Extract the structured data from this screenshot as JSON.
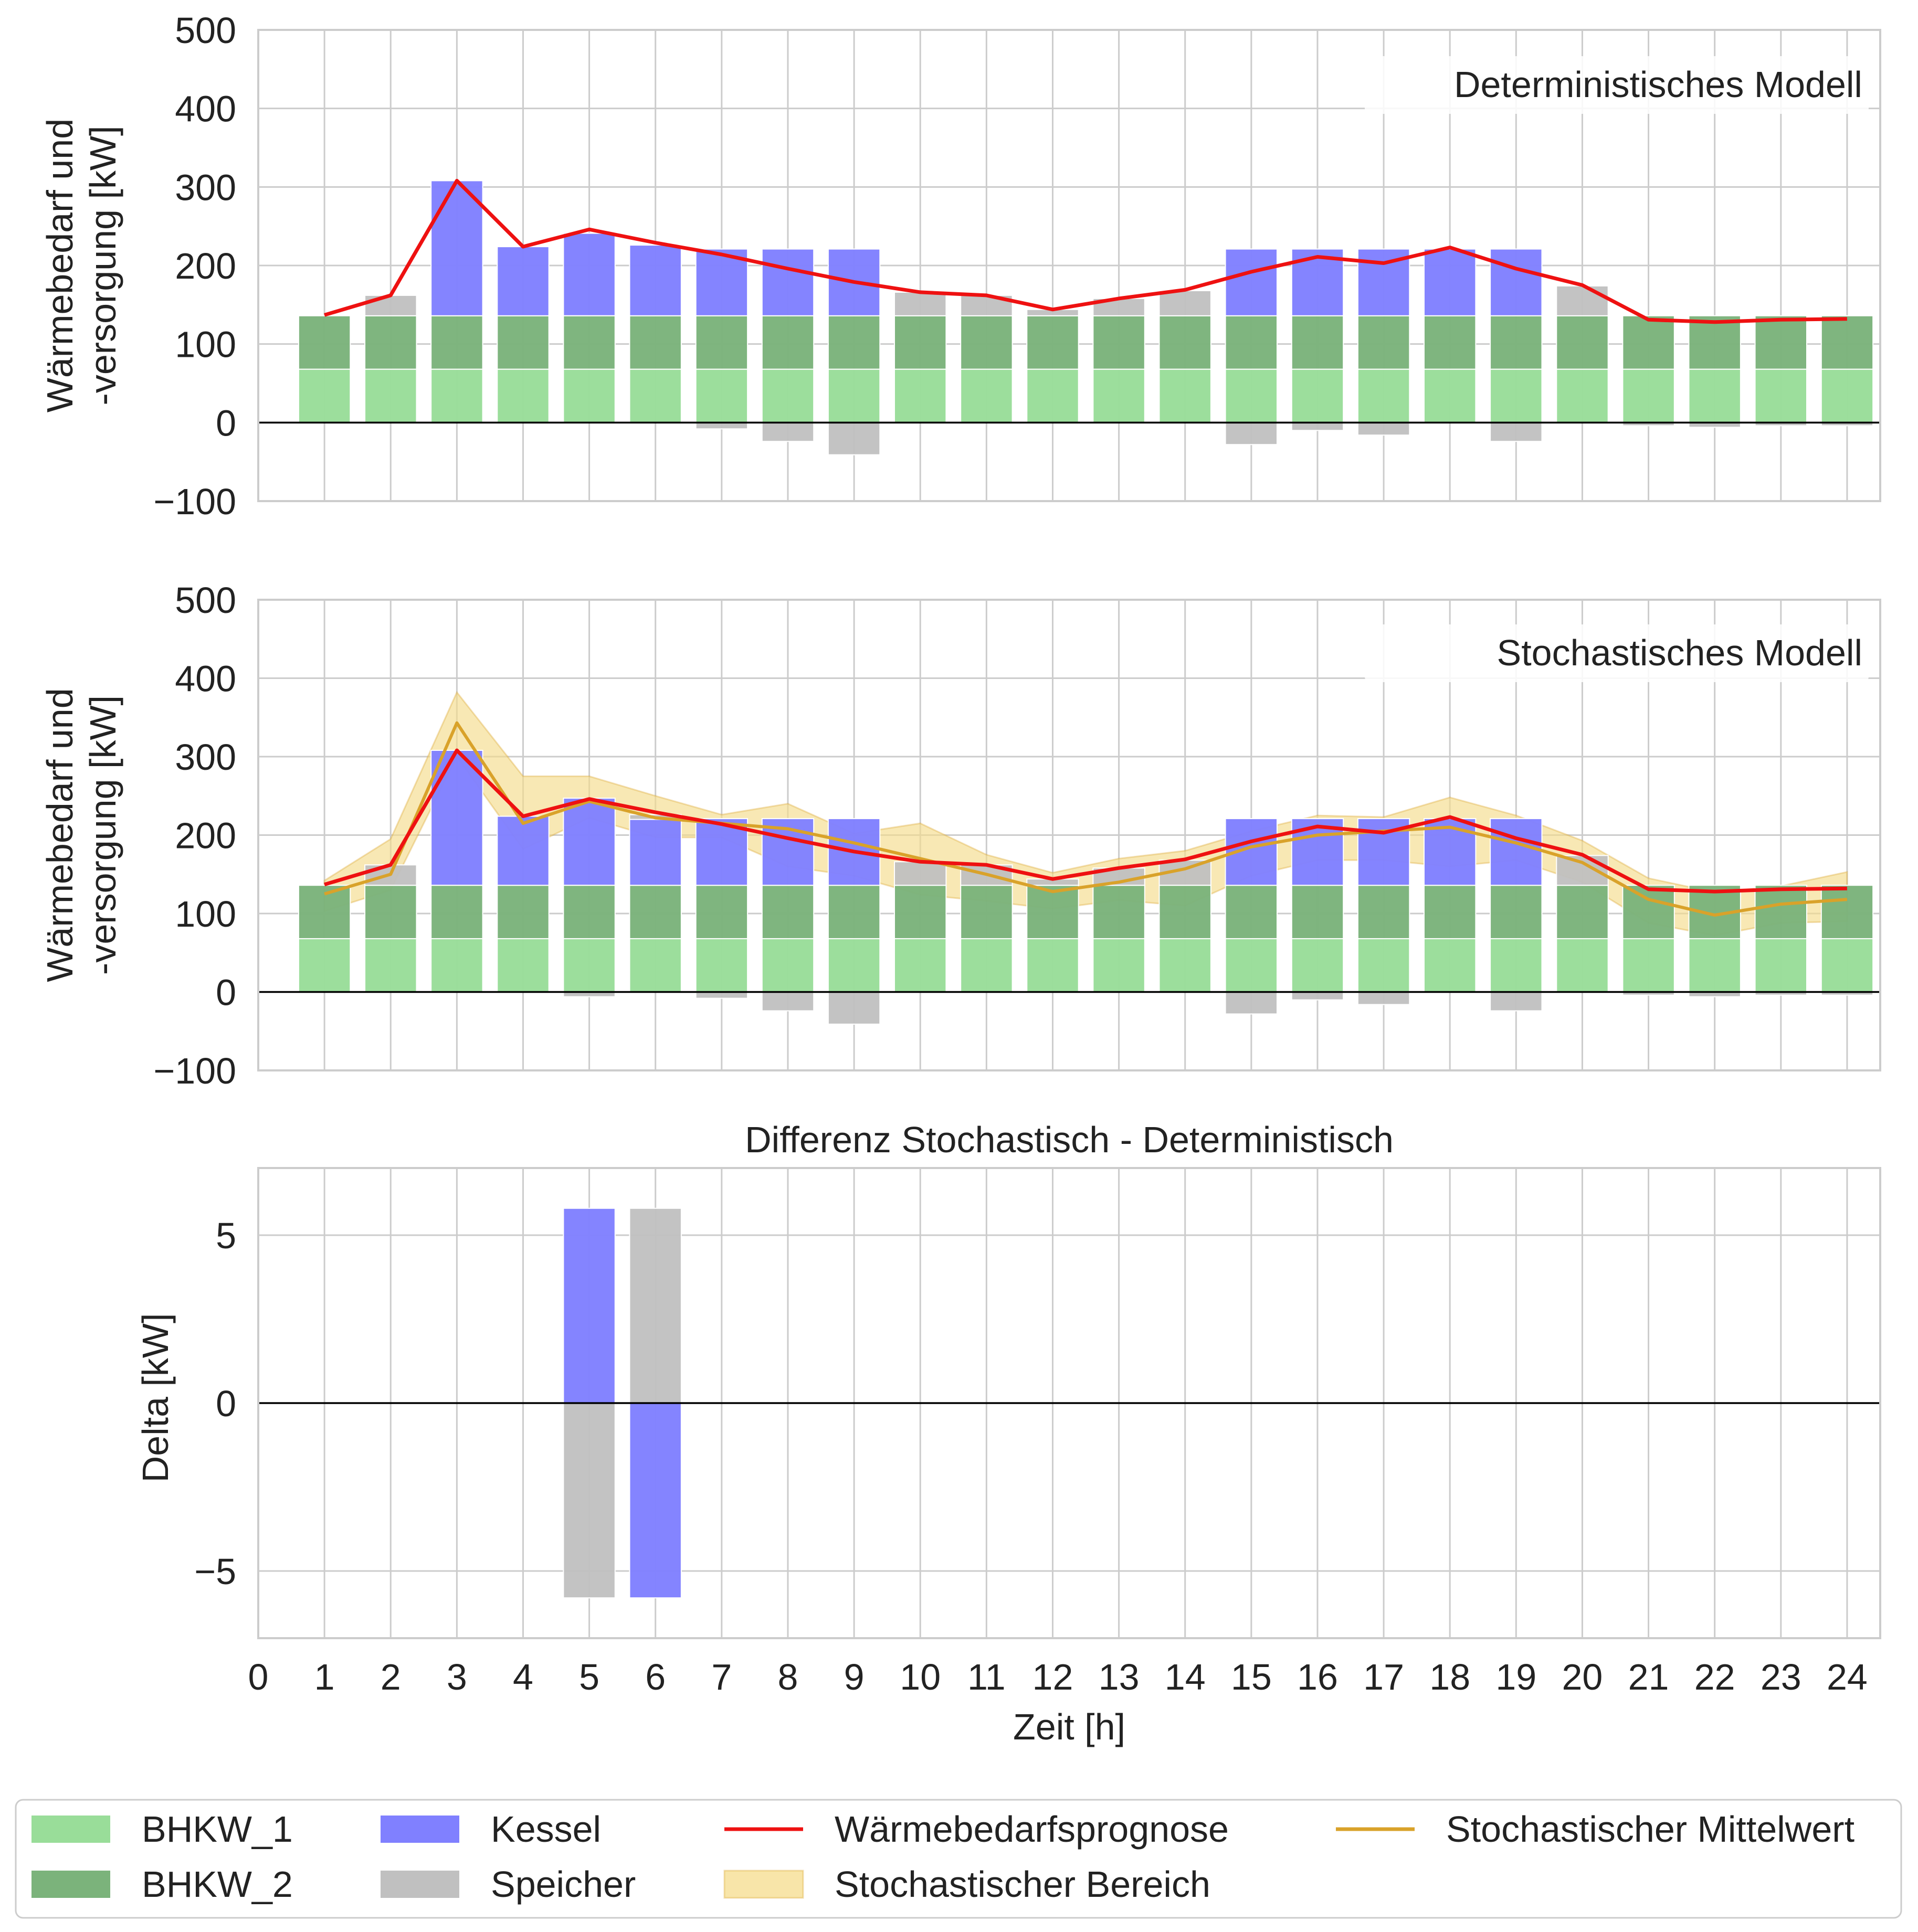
{
  "colors": {
    "bhkw1": "#99dd99",
    "bhkw2": "#7bb37b",
    "kessel": "#8080ff",
    "speicher": "#c0c0c0",
    "prognose": "#ee1111",
    "mittelwert": "#d9a22a",
    "bereich": "#f5dc8c",
    "grid": "#cccccc",
    "zero": "#000000"
  },
  "legend": {
    "items": [
      {
        "label": "BHKW_1",
        "kind": "patch",
        "color_key": "bhkw1"
      },
      {
        "label": "BHKW_2",
        "kind": "patch",
        "color_key": "bhkw2"
      },
      {
        "label": "Kessel",
        "kind": "patch",
        "color_key": "kessel"
      },
      {
        "label": "Speicher",
        "kind": "patch",
        "color_key": "speicher"
      },
      {
        "label": "Wärmebedarfsprognose",
        "kind": "line",
        "color_key": "prognose"
      },
      {
        "label": "Stochastischer Bereich",
        "kind": "patch",
        "color_key": "bereich"
      },
      {
        "label": "Stochastischer Mittelwert",
        "kind": "line",
        "color_key": "mittelwert"
      }
    ]
  },
  "chart_data": [
    {
      "type": "bar",
      "panel": "deterministic",
      "title": "",
      "annotation": "Deterministisches Modell",
      "ylabel": [
        "Wärmebedarf und",
        "-versorgung [kW]"
      ],
      "xlabel": "",
      "ylim": [
        -100,
        500
      ],
      "yticks": [
        -100,
        0,
        100,
        200,
        300,
        400,
        500
      ],
      "ytick_labels": [
        "−100",
        "0",
        "100",
        "200",
        "300",
        "400",
        "500"
      ],
      "xlim": [
        0,
        24.5
      ],
      "xticks": [
        0,
        1,
        2,
        3,
        4,
        5,
        6,
        7,
        8,
        9,
        10,
        11,
        12,
        13,
        14,
        15,
        16,
        17,
        18,
        19,
        20,
        21,
        22,
        23,
        24
      ],
      "show_xtick_labels": false,
      "grid": true,
      "x": [
        1,
        2,
        3,
        4,
        5,
        6,
        7,
        8,
        9,
        10,
        11,
        12,
        13,
        14,
        15,
        16,
        17,
        18,
        19,
        20,
        21,
        22,
        23,
        24
      ],
      "series": [
        {
          "name": "BHKW_1",
          "color_key": "bhkw1",
          "values": [
            68,
            68,
            68,
            68,
            68,
            68,
            68,
            68,
            68,
            68,
            68,
            68,
            68,
            68,
            68,
            68,
            68,
            68,
            68,
            68,
            68,
            68,
            68,
            68
          ]
        },
        {
          "name": "BHKW_2",
          "color_key": "bhkw2",
          "values": [
            68,
            68,
            68,
            68,
            68,
            68,
            68,
            68,
            68,
            68,
            68,
            68,
            68,
            68,
            68,
            68,
            68,
            68,
            68,
            68,
            68,
            68,
            68,
            68
          ]
        },
        {
          "name": "Kessel",
          "color_key": "kessel",
          "values": [
            0,
            0,
            172,
            88,
            105,
            90,
            85,
            85,
            85,
            0,
            0,
            0,
            0,
            0,
            85,
            85,
            85,
            85,
            85,
            0,
            0,
            0,
            0,
            0
          ]
        },
        {
          "name": "Speicher",
          "color_key": "speicher",
          "values": [
            0,
            26,
            0,
            0,
            0,
            0,
            -8,
            -24,
            -41,
            30,
            26,
            8,
            22,
            32,
            -28,
            -10,
            -16,
            0,
            -24,
            38,
            -4,
            -6,
            -4,
            -4
          ]
        },
        {
          "name": "Wärmebedarfsprognose",
          "type": "line",
          "color_key": "prognose",
          "values": [
            137,
            162,
            308,
            224,
            246,
            229,
            214,
            196,
            179,
            166,
            162,
            144,
            158,
            169,
            192,
            211,
            203,
            223,
            196,
            175,
            131,
            128,
            131,
            132
          ]
        }
      ]
    },
    {
      "type": "bar",
      "panel": "stochastic",
      "title": "",
      "annotation": "Stochastisches Modell",
      "ylabel": [
        "Wärmebedarf und",
        "-versorgung [kW]"
      ],
      "xlabel": "",
      "ylim": [
        -100,
        500
      ],
      "yticks": [
        -100,
        0,
        100,
        200,
        300,
        400,
        500
      ],
      "ytick_labels": [
        "−100",
        "0",
        "100",
        "200",
        "300",
        "400",
        "500"
      ],
      "xlim": [
        0,
        24.5
      ],
      "xticks": [
        0,
        1,
        2,
        3,
        4,
        5,
        6,
        7,
        8,
        9,
        10,
        11,
        12,
        13,
        14,
        15,
        16,
        17,
        18,
        19,
        20,
        21,
        22,
        23,
        24
      ],
      "show_xtick_labels": false,
      "grid": true,
      "x": [
        1,
        2,
        3,
        4,
        5,
        6,
        7,
        8,
        9,
        10,
        11,
        12,
        13,
        14,
        15,
        16,
        17,
        18,
        19,
        20,
        21,
        22,
        23,
        24
      ],
      "series": [
        {
          "name": "BHKW_1",
          "color_key": "bhkw1",
          "values": [
            68,
            68,
            68,
            68,
            68,
            68,
            68,
            68,
            68,
            68,
            68,
            68,
            68,
            68,
            68,
            68,
            68,
            68,
            68,
            68,
            68,
            68,
            68,
            68
          ]
        },
        {
          "name": "BHKW_2",
          "color_key": "bhkw2",
          "values": [
            68,
            68,
            68,
            68,
            68,
            68,
            68,
            68,
            68,
            68,
            68,
            68,
            68,
            68,
            68,
            68,
            68,
            68,
            68,
            68,
            68,
            68,
            68,
            68
          ]
        },
        {
          "name": "Kessel",
          "color_key": "kessel",
          "values": [
            0,
            0,
            172,
            88,
            111,
            84,
            85,
            85,
            85,
            0,
            0,
            0,
            0,
            0,
            85,
            85,
            85,
            85,
            85,
            0,
            0,
            0,
            0,
            0
          ]
        },
        {
          "name": "Speicher",
          "color_key": "speicher",
          "values": [
            0,
            26,
            0,
            0,
            -6,
            6,
            -8,
            -24,
            -41,
            30,
            26,
            8,
            22,
            32,
            -28,
            -10,
            -16,
            0,
            -24,
            38,
            -4,
            -6,
            -4,
            -4
          ]
        },
        {
          "name": "Wärmebedarfsprognose",
          "type": "line",
          "color_key": "prognose",
          "values": [
            137,
            162,
            308,
            224,
            246,
            229,
            214,
            196,
            179,
            166,
            162,
            144,
            158,
            169,
            192,
            211,
            203,
            223,
            196,
            175,
            131,
            128,
            131,
            132
          ]
        },
        {
          "name": "Stochastischer Mittelwert",
          "type": "line",
          "color_key": "mittelwert",
          "values": [
            125,
            150,
            343,
            215,
            243,
            222,
            215,
            208,
            190,
            170,
            150,
            128,
            140,
            157,
            185,
            200,
            205,
            210,
            190,
            165,
            118,
            98,
            112,
            118
          ]
        },
        {
          "name": "Stochastischer Bereich",
          "type": "band",
          "color_key": "bereich",
          "lower": [
            103,
            130,
            300,
            182,
            222,
            197,
            197,
            160,
            148,
            124,
            116,
            106,
            117,
            110,
            148,
            168,
            168,
            160,
            168,
            140,
            88,
            72,
            88,
            90
          ],
          "upper": [
            142,
            195,
            382,
            275,
            275,
            250,
            226,
            240,
            202,
            215,
            175,
            152,
            170,
            180,
            205,
            225,
            223,
            248,
            225,
            193,
            145,
            127,
            135,
            153
          ]
        }
      ]
    },
    {
      "type": "bar",
      "panel": "difference",
      "title": "Differenz Stochastisch - Deterministisch",
      "ylabel": [
        "Delta [kW]"
      ],
      "xlabel": "Zeit [h]",
      "ylim": [
        -7,
        7
      ],
      "yticks": [
        -5,
        0,
        5
      ],
      "ytick_labels": [
        "−5",
        "0",
        "5"
      ],
      "xlim": [
        0,
        24.5
      ],
      "xticks": [
        0,
        1,
        2,
        3,
        4,
        5,
        6,
        7,
        8,
        9,
        10,
        11,
        12,
        13,
        14,
        15,
        16,
        17,
        18,
        19,
        20,
        21,
        22,
        23,
        24
      ],
      "xtick_labels": [
        "0",
        "1",
        "2",
        "3",
        "4",
        "5",
        "6",
        "7",
        "8",
        "9",
        "10",
        "11",
        "12",
        "13",
        "14",
        "15",
        "16",
        "17",
        "18",
        "19",
        "20",
        "21",
        "22",
        "23",
        "24"
      ],
      "show_xtick_labels": true,
      "grid": true,
      "x": [
        1,
        2,
        3,
        4,
        5,
        6,
        7,
        8,
        9,
        10,
        11,
        12,
        13,
        14,
        15,
        16,
        17,
        18,
        19,
        20,
        21,
        22,
        23,
        24
      ],
      "series": [
        {
          "name": "Kessel",
          "color_key": "kessel",
          "values": [
            0,
            0,
            0,
            0,
            5.8,
            -5.8,
            0,
            0,
            0,
            0,
            0,
            0,
            0,
            0,
            0,
            0,
            0,
            0,
            0,
            0,
            0,
            0,
            0,
            0
          ]
        },
        {
          "name": "Speicher",
          "color_key": "speicher",
          "values": [
            0,
            0,
            0,
            0,
            -5.8,
            5.8,
            0,
            0,
            0,
            0,
            0,
            0,
            0,
            0,
            0,
            0,
            0,
            0,
            0,
            0,
            0,
            0,
            0,
            0
          ]
        }
      ]
    }
  ]
}
